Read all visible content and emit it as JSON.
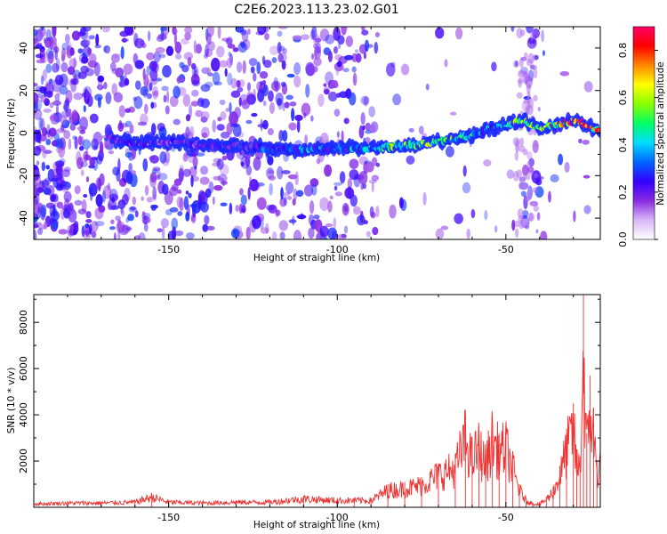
{
  "title": "C2E6.2023.113.23.02.G01",
  "chart_data": [
    {
      "type": "heatmap",
      "title": "C2E6.2023.113.23.02.G01",
      "xlabel": "Height of straight line (km)",
      "ylabel": "Frequency (Hz)",
      "xlim": [
        -190,
        -22
      ],
      "ylim": [
        -50,
        50
      ],
      "xticks": [
        -150,
        -100,
        -50
      ],
      "yticks": [
        -40,
        -20,
        0,
        20,
        40
      ],
      "grid": false,
      "colorbar": {
        "label": "Normalized spectral amplitude",
        "range": [
          0,
          0.9
        ],
        "ticks": [
          0.0,
          0.2,
          0.4,
          0.6,
          0.8
        ],
        "colors": [
          "#ffffff",
          "#d8b8f8",
          "#8a2be2",
          "#3300ff",
          "#0066ff",
          "#00ddff",
          "#00ff66",
          "#88ff00",
          "#ffff00",
          "#ff8800",
          "#ff0000",
          "#ff0066"
        ]
      },
      "ridge": {
        "x": [
          -167,
          -160,
          -150,
          -140,
          -130,
          -120,
          -110,
          -100,
          -90,
          -80,
          -70,
          -60,
          -55,
          -50,
          -45,
          -40,
          -35,
          -30,
          -25,
          -22
        ],
        "frequency": [
          -3,
          -5,
          -4,
          -6,
          -6,
          -7,
          -8,
          -7,
          -7,
          -6,
          -4,
          -1,
          2,
          4,
          6,
          2,
          4,
          6,
          3,
          1
        ],
        "amplitude": [
          0.2,
          0.2,
          0.2,
          0.22,
          0.25,
          0.3,
          0.35,
          0.35,
          0.4,
          0.55,
          0.5,
          0.45,
          0.4,
          0.45,
          0.6,
          0.5,
          0.7,
          0.8,
          0.75,
          0.7
        ]
      }
    },
    {
      "type": "line",
      "xlabel": "Height of straight line (km)",
      "ylabel": "SNR (10 * v/v)",
      "xlim": [
        -190,
        -22
      ],
      "ylim": [
        0,
        9200
      ],
      "xticks": [
        -150,
        -100,
        -50
      ],
      "yticks": [
        2000,
        4000,
        6000,
        8000
      ],
      "grid": false,
      "color": "#ee3333",
      "series": [
        {
          "x": [
            -190,
            -180,
            -170,
            -160,
            -155,
            -150,
            -140,
            -130,
            -120,
            -110,
            -100,
            -95,
            -90,
            -85,
            -80,
            -75,
            -70,
            -65,
            -62,
            -60,
            -58,
            -56,
            -54,
            -52,
            -50,
            -48,
            -46,
            -44,
            -42,
            -40,
            -38,
            -36,
            -34,
            -32,
            -30,
            -29,
            -28,
            -27,
            -26,
            -25,
            -24,
            -23,
            -22
          ],
          "y": [
            200,
            250,
            250,
            300,
            600,
            300,
            250,
            300,
            300,
            500,
            400,
            400,
            400,
            1000,
            1100,
            1300,
            1900,
            2300,
            4000,
            2800,
            3500,
            2500,
            4000,
            3200,
            3500,
            2300,
            1000,
            400,
            200,
            200,
            450,
            900,
            1800,
            3400,
            4500,
            2500,
            2200,
            9200,
            3200,
            5700,
            4300,
            2000,
            2600
          ]
        }
      ]
    }
  ]
}
